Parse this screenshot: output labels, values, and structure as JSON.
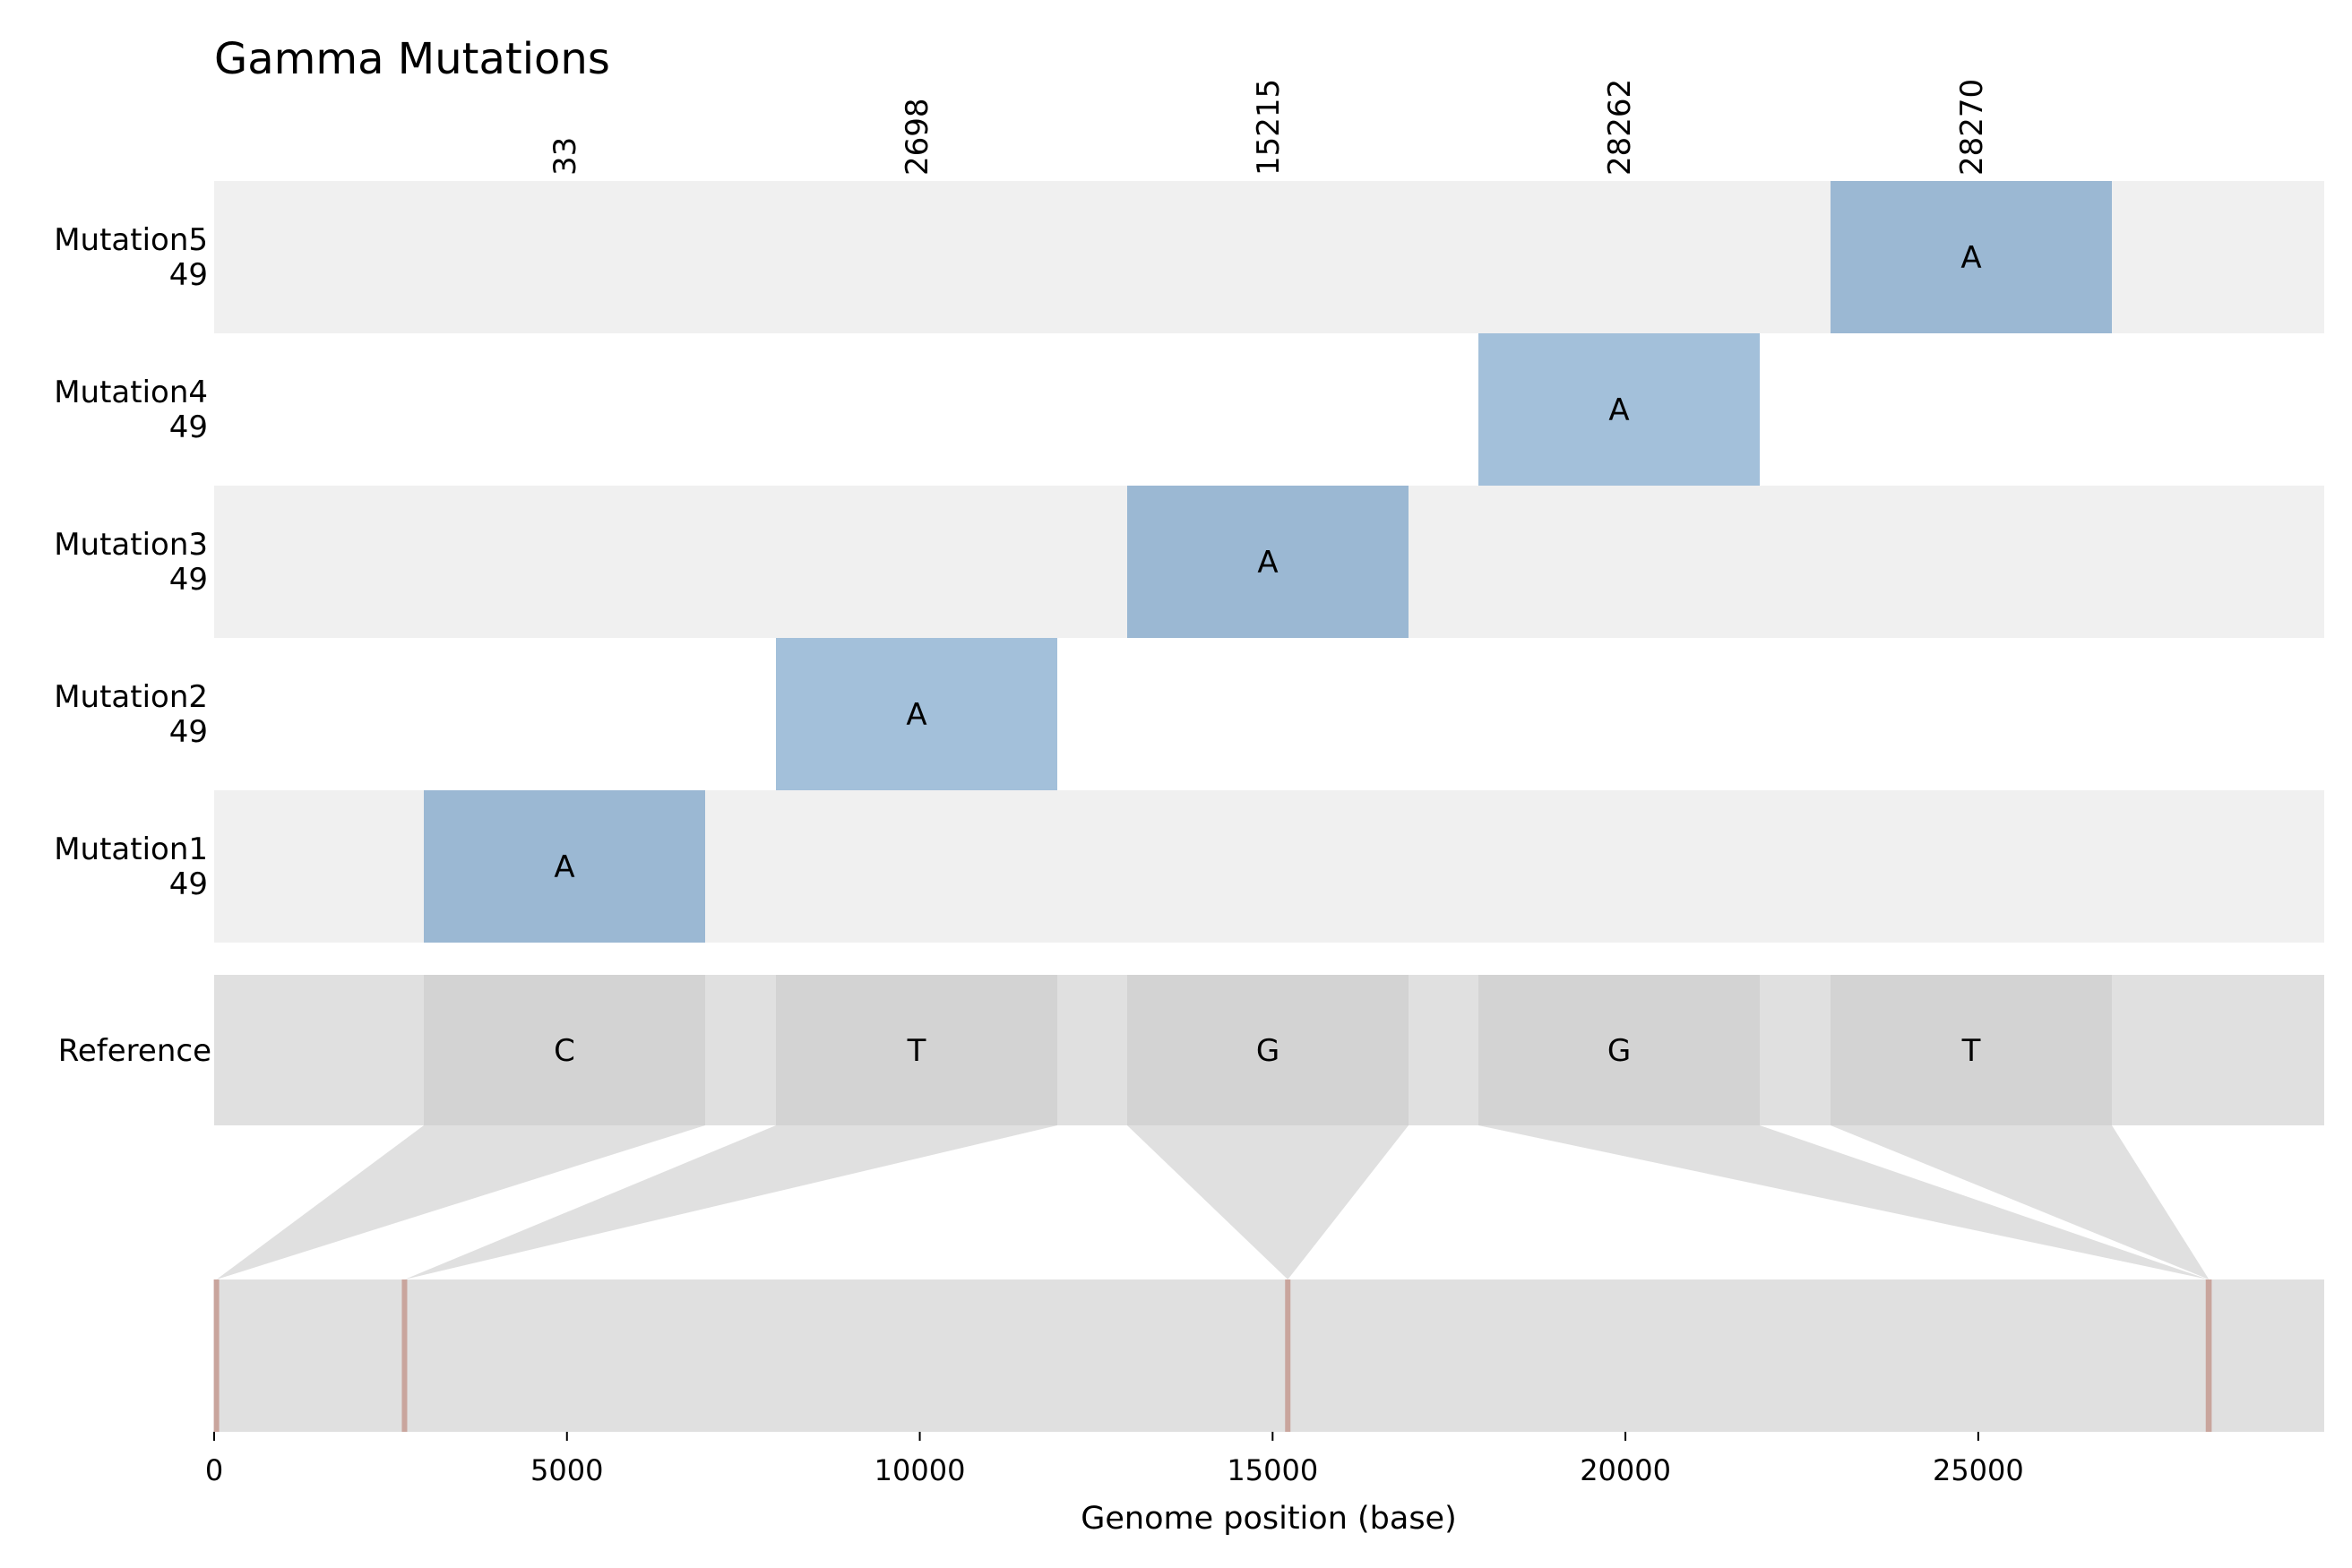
{
  "chart_data": {
    "type": "genome-mutation-map",
    "title": "Gamma Mutations",
    "xlabel": "Genome position (base)",
    "xlim": [
      0,
      29903
    ],
    "xticks": [
      0,
      5000,
      10000,
      15000,
      20000,
      25000
    ],
    "positions": [
      "33",
      "2698",
      "15215",
      "28262",
      "28270"
    ],
    "position_values": [
      33,
      2698,
      15215,
      28262,
      28270
    ],
    "reference": {
      "label": "Reference",
      "bases": [
        "C",
        "T",
        "G",
        "G",
        "T"
      ]
    },
    "rows": [
      {
        "name": "Mutation5",
        "count": "49",
        "position_index": 4,
        "base": "A"
      },
      {
        "name": "Mutation4",
        "count": "49",
        "position_index": 3,
        "base": "A"
      },
      {
        "name": "Mutation3",
        "count": "49",
        "position_index": 2,
        "base": "A"
      },
      {
        "name": "Mutation2",
        "count": "49",
        "position_index": 1,
        "base": "A"
      },
      {
        "name": "Mutation1",
        "count": "49",
        "position_index": 0,
        "base": "A"
      }
    ],
    "colors": {
      "stripe": "#f0f0f0",
      "mutation_cell": "#9bb8d3",
      "mutation_cell_alt": "#a3c0da",
      "reference_track": "#e0e0e0",
      "reference_cell": "#d3d3d3",
      "genome_track": "#e0e0e0",
      "connector": "#e0e0e0",
      "marker": "#c9a59d"
    }
  }
}
